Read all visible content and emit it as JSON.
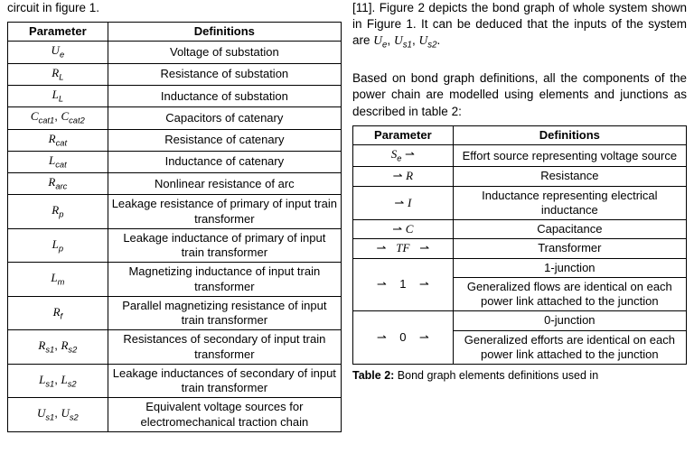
{
  "left": {
    "topText": "circuit in figure 1.",
    "t1": {
      "head": {
        "p": "Parameter",
        "d": "Definitions"
      },
      "rows": [
        {
          "p": "U_e",
          "d": "Voltage of substation"
        },
        {
          "p": "R_L",
          "d": "Resistance of substation"
        },
        {
          "p": "L_L",
          "d": "Inductance of substation"
        },
        {
          "p": "C_cat1_C_cat2",
          "d": "Capacitors of catenary"
        },
        {
          "p": "R_cat",
          "d": "Resistance of catenary"
        },
        {
          "p": "L_cat",
          "d": "Inductance of catenary"
        },
        {
          "p": "R_arc",
          "d": "Nonlinear resistance of arc"
        },
        {
          "p": "R_p",
          "d": "Leakage resistance of primary of input train transformer"
        },
        {
          "p": "L_p",
          "d": "Leakage inductance of primary of input train transformer"
        },
        {
          "p": "L_m",
          "d": "Magnetizing inductance of input train transformer"
        },
        {
          "p": "R_f",
          "d": "Parallel magnetizing resistance of input train transformer"
        },
        {
          "p": "R_s1_R_s2",
          "d": "Resistances of secondary of input train transformer"
        },
        {
          "p": "L_s1_L_s2",
          "d": "Leakage inductances of secondary of input train transformer"
        },
        {
          "p": "U_s1_U_s2",
          "d": "Equivalent voltage sources for electromechanical traction chain"
        }
      ]
    }
  },
  "right": {
    "para1a": "[11]. Figure 2 depicts the bond graph of whole system shown in Figure 1. It can be deduced that the inputs of the system are ",
    "para1b": ".",
    "para2": "Based on bond graph definitions, all the components of the power chain are modelled using elements and junctions as described in table 2:",
    "t2": {
      "head": {
        "p": "Parameter",
        "d": "Definitions"
      },
      "rows": [
        {
          "p": "Se_arrow",
          "d": "Effort source representing voltage source"
        },
        {
          "p": "arrow_R",
          "d": "Resistance"
        },
        {
          "p": "arrow_I",
          "d": "Inductance representing electrical inductance"
        },
        {
          "p": "arrow_C",
          "d": "Capacitance"
        },
        {
          "p": "arrow_TF_arrow",
          "d": "Transformer"
        },
        {
          "p": "arrow_1_arrow",
          "d": "1-junction",
          "d2": "Generalized flows are identical on each power link attached to the junction"
        },
        {
          "p": "arrow_0_arrow",
          "d": "0-junction",
          "d2": "Generalized efforts are identical on each power link attached to the junction"
        }
      ]
    },
    "captionLabel": "Table 2:",
    "captionText": " Bond graph elements definitions used in"
  },
  "glyphs": {
    "harpoon": "⇀"
  }
}
